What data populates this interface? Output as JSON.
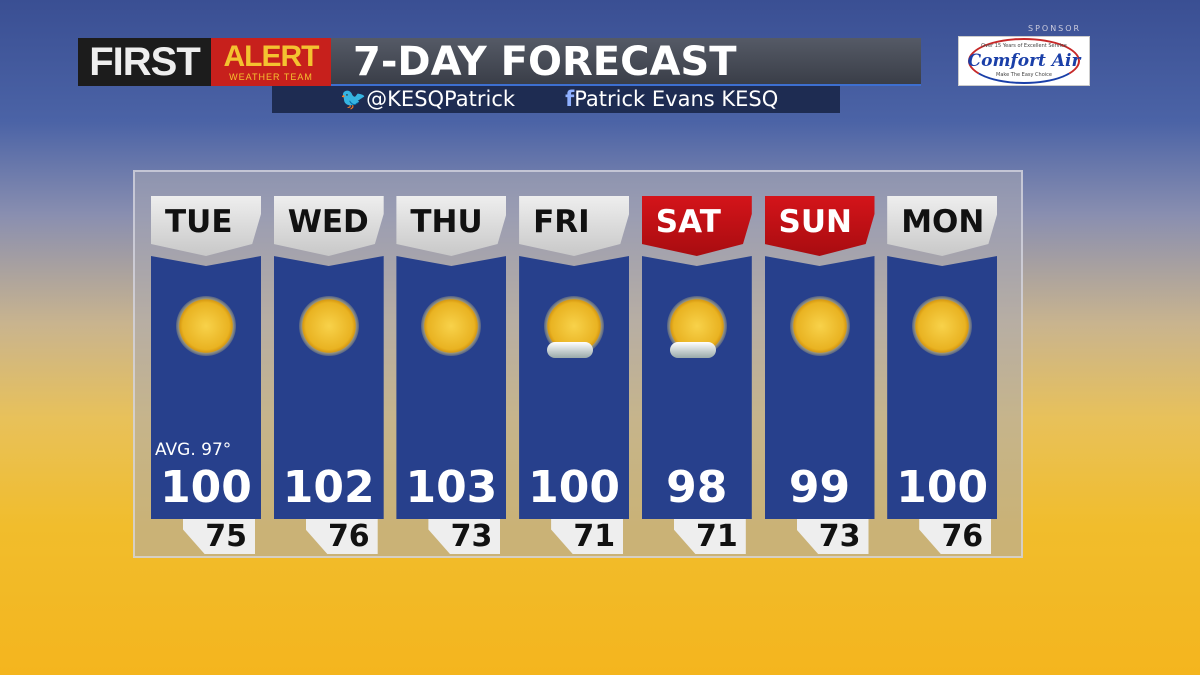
{
  "header": {
    "brand_first": "FIRST",
    "brand_alert": "ALERT",
    "brand_team": "WEATHER TEAM",
    "title": "7-DAY FORECAST",
    "twitter_icon": "twitter-bird-icon",
    "twitter": "@KESQPatrick",
    "facebook_icon": "facebook-icon",
    "facebook": "Patrick Evans KESQ"
  },
  "sponsor": {
    "label": "SPONSOR",
    "name": "Comfort Air",
    "tagline_top": "Over 15 Years of Excellent Service",
    "tagline_bottom": "Make The Easy Choice"
  },
  "average_label": "AVG. 97°",
  "colors": {
    "weekday_tab": "#d8d8d8",
    "weekend_tab": "#c0151b",
    "panel_body": "#27408c"
  },
  "days": [
    {
      "day": "TUE",
      "high": "100",
      "low": "75",
      "icon": "sunny-icon",
      "weekend": false
    },
    {
      "day": "WED",
      "high": "102",
      "low": "76",
      "icon": "sunny-icon",
      "weekend": false
    },
    {
      "day": "THU",
      "high": "103",
      "low": "73",
      "icon": "sunny-icon",
      "weekend": false
    },
    {
      "day": "FRI",
      "high": "100",
      "low": "71",
      "icon": "mostly-sunny-icon",
      "weekend": false
    },
    {
      "day": "SAT",
      "high": "98",
      "low": "71",
      "icon": "mostly-sunny-icon",
      "weekend": true
    },
    {
      "day": "SUN",
      "high": "99",
      "low": "73",
      "icon": "sunny-icon",
      "weekend": true
    },
    {
      "day": "MON",
      "high": "100",
      "low": "76",
      "icon": "sunny-icon",
      "weekend": false
    }
  ]
}
